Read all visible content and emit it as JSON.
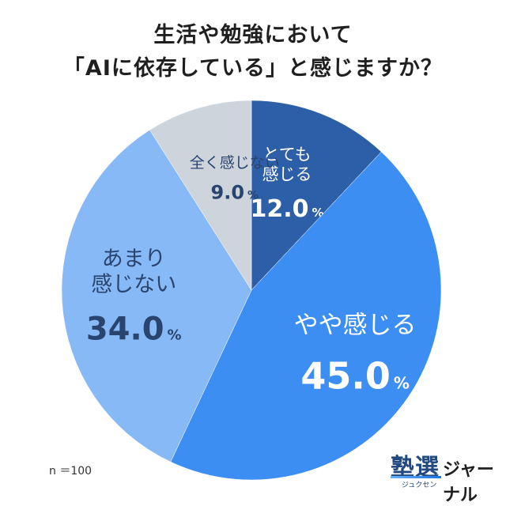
{
  "title_line1": "生活や勉強において",
  "title_line2": "「AIに依存している」と感じますか？",
  "note": "n ＝100",
  "logo": {
    "kanji": "塾選",
    "kana": "ジュクセン",
    "suffix": "ジャーナル"
  },
  "chart_data": {
    "type": "pie",
    "start_angle_deg": 0,
    "direction": "clockwise",
    "unit": "%",
    "slices": [
      {
        "label_lines": [
          "とても",
          "感じる"
        ],
        "value": 12.0,
        "value_text": "12.0",
        "color": "#2c5fa8",
        "text_color": "#ffffff"
      },
      {
        "label_lines": [
          "やや感じる"
        ],
        "value": 45.0,
        "value_text": "45.0",
        "color": "#3c8ef2",
        "text_color": "#ffffff"
      },
      {
        "label_lines": [
          "あまり",
          "感じない"
        ],
        "value": 34.0,
        "value_text": "34.0",
        "color": "#87b9f7",
        "text_color": "#2a4470"
      },
      {
        "label_lines": [
          "全く感じない"
        ],
        "value": 9.0,
        "value_text": "9.0",
        "color": "#cdd4dc",
        "text_color": "#2a4470"
      }
    ]
  }
}
